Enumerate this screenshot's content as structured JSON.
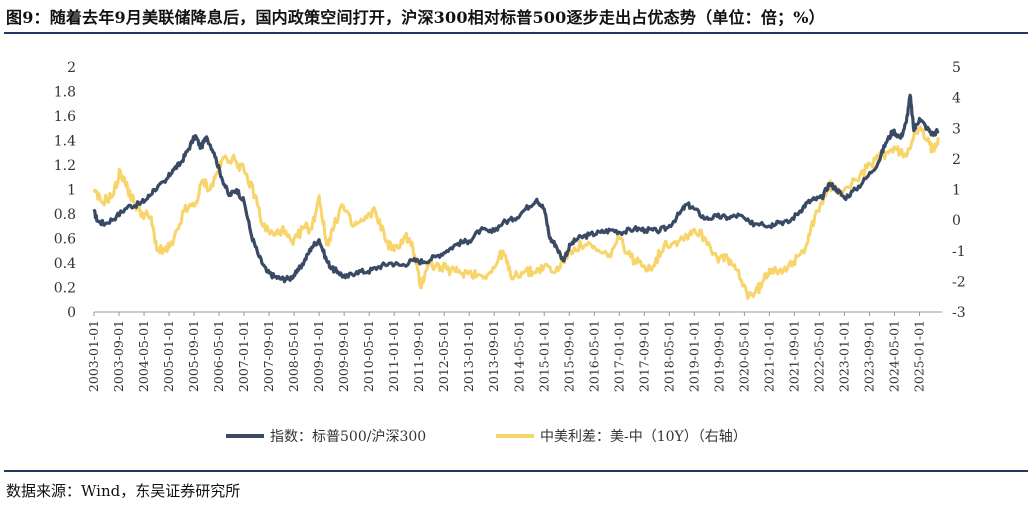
{
  "title": "图9：随着去年9月美联储降息后，国内政策空间打开，沪深300相对标普500逐步走出占优态势（单位：倍；%）",
  "source": "数据来源：Wind，东吴证券研究所",
  "colors": {
    "series1": "#3a4a64",
    "series2": "#f7d56a",
    "rule": "#1f3864"
  },
  "chart_data": {
    "type": "line",
    "title": "随着去年9月美联储降息后，国内政策空间打开，沪深300相对标普500逐步走出占优态势（单位：倍；%）",
    "xlabel": "",
    "ylabel_left": "倍",
    "ylabel_right": "%",
    "x_ticks": [
      "2003-01-01",
      "2003-09-01",
      "2004-05-01",
      "2005-01-01",
      "2005-09-01",
      "2006-05-01",
      "2007-01-01",
      "2007-09-01",
      "2008-05-01",
      "2009-01-01",
      "2009-09-01",
      "2010-05-01",
      "2011-01-01",
      "2011-09-01",
      "2012-05-01",
      "2013-01-01",
      "2013-09-01",
      "2014-05-01",
      "2015-01-01",
      "2015-09-01",
      "2016-05-01",
      "2017-01-01",
      "2017-09-01",
      "2018-05-01",
      "2019-01-01",
      "2019-09-01",
      "2020-05-01",
      "2021-01-01",
      "2021-09-01",
      "2022-05-01",
      "2023-01-01",
      "2023-09-01",
      "2024-05-01",
      "2025-01-01"
    ],
    "ylim_left": [
      0,
      2
    ],
    "yticks_left": [
      "0",
      "0.2",
      "0.4",
      "0.6",
      "0.8",
      "1",
      "1.2",
      "1.4",
      "1.6",
      "1.8",
      "2"
    ],
    "ylim_right": [
      -3,
      5
    ],
    "yticks_right": [
      "-3",
      "-2",
      "-1",
      "0",
      "1",
      "2",
      "3",
      "4",
      "5"
    ],
    "legend_position": "bottom",
    "series": [
      {
        "name": "指数：标普500/沪深300",
        "axis": "left",
        "points": [
          [
            2003.0,
            0.82
          ],
          [
            2003.1,
            0.74
          ],
          [
            2003.3,
            0.72
          ],
          [
            2003.6,
            0.78
          ],
          [
            2003.9,
            0.86
          ],
          [
            2004.2,
            0.88
          ],
          [
            2004.4,
            0.92
          ],
          [
            2004.6,
            1.0
          ],
          [
            2004.9,
            1.06
          ],
          [
            2005.1,
            1.16
          ],
          [
            2005.3,
            1.21
          ],
          [
            2005.5,
            1.32
          ],
          [
            2005.7,
            1.44
          ],
          [
            2005.85,
            1.34
          ],
          [
            2006.0,
            1.43
          ],
          [
            2006.2,
            1.3
          ],
          [
            2006.4,
            1.1
          ],
          [
            2006.6,
            0.95
          ],
          [
            2006.8,
            1.0
          ],
          [
            2007.0,
            0.9
          ],
          [
            2007.2,
            0.62
          ],
          [
            2007.4,
            0.45
          ],
          [
            2007.6,
            0.33
          ],
          [
            2007.8,
            0.29
          ],
          [
            2008.0,
            0.27
          ],
          [
            2008.2,
            0.27
          ],
          [
            2008.4,
            0.32
          ],
          [
            2008.6,
            0.41
          ],
          [
            2008.8,
            0.53
          ],
          [
            2009.0,
            0.59
          ],
          [
            2009.2,
            0.42
          ],
          [
            2009.35,
            0.35
          ],
          [
            2009.5,
            0.33
          ],
          [
            2009.7,
            0.28
          ],
          [
            2010.0,
            0.33
          ],
          [
            2010.3,
            0.33
          ],
          [
            2010.6,
            0.37
          ],
          [
            2010.9,
            0.4
          ],
          [
            2011.2,
            0.38
          ],
          [
            2011.5,
            0.42
          ],
          [
            2011.8,
            0.41
          ],
          [
            2012.1,
            0.45
          ],
          [
            2012.4,
            0.5
          ],
          [
            2012.7,
            0.56
          ],
          [
            2013.0,
            0.58
          ],
          [
            2013.3,
            0.67
          ],
          [
            2013.6,
            0.65
          ],
          [
            2013.9,
            0.73
          ],
          [
            2014.2,
            0.76
          ],
          [
            2014.5,
            0.84
          ],
          [
            2014.8,
            0.92
          ],
          [
            2015.0,
            0.84
          ],
          [
            2015.15,
            0.6
          ],
          [
            2015.3,
            0.55
          ],
          [
            2015.5,
            0.42
          ],
          [
            2015.7,
            0.55
          ],
          [
            2015.9,
            0.6
          ],
          [
            2016.2,
            0.63
          ],
          [
            2016.5,
            0.65
          ],
          [
            2016.8,
            0.67
          ],
          [
            2017.1,
            0.65
          ],
          [
            2017.4,
            0.68
          ],
          [
            2017.7,
            0.67
          ],
          [
            2018.0,
            0.66
          ],
          [
            2018.3,
            0.69
          ],
          [
            2018.6,
            0.8
          ],
          [
            2018.8,
            0.88
          ],
          [
            2019.0,
            0.84
          ],
          [
            2019.3,
            0.76
          ],
          [
            2019.6,
            0.78
          ],
          [
            2019.9,
            0.77
          ],
          [
            2020.2,
            0.79
          ],
          [
            2020.5,
            0.72
          ],
          [
            2020.8,
            0.73
          ],
          [
            2021.0,
            0.7
          ],
          [
            2021.2,
            0.74
          ],
          [
            2021.5,
            0.73
          ],
          [
            2021.8,
            0.82
          ],
          [
            2022.0,
            0.89
          ],
          [
            2022.2,
            0.92
          ],
          [
            2022.4,
            0.93
          ],
          [
            2022.6,
            1.05
          ],
          [
            2022.8,
            1.0
          ],
          [
            2023.0,
            0.93
          ],
          [
            2023.3,
            1.0
          ],
          [
            2023.6,
            1.1
          ],
          [
            2023.9,
            1.22
          ],
          [
            2024.1,
            1.38
          ],
          [
            2024.3,
            1.48
          ],
          [
            2024.5,
            1.42
          ],
          [
            2024.65,
            1.55
          ],
          [
            2024.75,
            1.77
          ],
          [
            2024.85,
            1.48
          ],
          [
            2025.0,
            1.58
          ],
          [
            2025.2,
            1.5
          ],
          [
            2025.35,
            1.45
          ],
          [
            2025.5,
            1.48
          ]
        ]
      },
      {
        "name": "中美利差：美-中（10Y）（右轴）",
        "axis": "right",
        "points": [
          [
            2003.0,
            0.9
          ],
          [
            2003.2,
            0.6
          ],
          [
            2003.5,
            0.8
          ],
          [
            2003.7,
            1.6
          ],
          [
            2003.9,
            1.0
          ],
          [
            2004.1,
            0.5
          ],
          [
            2004.3,
            0.2
          ],
          [
            2004.5,
            0.1
          ],
          [
            2004.7,
            -1.0
          ],
          [
            2004.9,
            -1.0
          ],
          [
            2005.1,
            -0.8
          ],
          [
            2005.4,
            0.3
          ],
          [
            2005.7,
            0.5
          ],
          [
            2005.9,
            1.3
          ],
          [
            2006.1,
            1.0
          ],
          [
            2006.3,
            1.6
          ],
          [
            2006.5,
            2.1
          ],
          [
            2006.8,
            1.9
          ],
          [
            2007.0,
            1.6
          ],
          [
            2007.3,
            0.8
          ],
          [
            2007.5,
            -0.2
          ],
          [
            2007.8,
            -0.5
          ],
          [
            2008.0,
            -0.3
          ],
          [
            2008.3,
            -0.8
          ],
          [
            2008.6,
            -0.2
          ],
          [
            2008.8,
            -0.3
          ],
          [
            2009.0,
            0.8
          ],
          [
            2009.2,
            -0.8
          ],
          [
            2009.4,
            -0.2
          ],
          [
            2009.6,
            0.5
          ],
          [
            2009.9,
            -0.2
          ],
          [
            2010.2,
            0.0
          ],
          [
            2010.5,
            0.3
          ],
          [
            2010.8,
            -0.7
          ],
          [
            2011.0,
            -1.0
          ],
          [
            2011.3,
            -0.5
          ],
          [
            2011.5,
            -0.9
          ],
          [
            2011.7,
            -2.2
          ],
          [
            2011.9,
            -1.4
          ],
          [
            2012.1,
            -1.5
          ],
          [
            2012.4,
            -1.6
          ],
          [
            2012.7,
            -1.7
          ],
          [
            2013.0,
            -1.7
          ],
          [
            2013.3,
            -1.8
          ],
          [
            2013.6,
            -1.7
          ],
          [
            2013.9,
            -1.0
          ],
          [
            2014.1,
            -1.8
          ],
          [
            2014.4,
            -1.7
          ],
          [
            2014.7,
            -1.7
          ],
          [
            2015.0,
            -1.5
          ],
          [
            2015.3,
            -1.7
          ],
          [
            2015.5,
            -1.3
          ],
          [
            2015.8,
            -0.9
          ],
          [
            2016.1,
            -0.8
          ],
          [
            2016.4,
            -1.0
          ],
          [
            2016.7,
            -1.2
          ],
          [
            2017.0,
            -0.6
          ],
          [
            2017.3,
            -1.2
          ],
          [
            2017.6,
            -1.5
          ],
          [
            2017.9,
            -1.5
          ],
          [
            2018.2,
            -0.8
          ],
          [
            2018.5,
            -0.7
          ],
          [
            2018.8,
            -0.5
          ],
          [
            2019.0,
            -0.3
          ],
          [
            2019.3,
            -0.6
          ],
          [
            2019.6,
            -1.2
          ],
          [
            2019.9,
            -1.3
          ],
          [
            2020.1,
            -1.6
          ],
          [
            2020.4,
            -2.4
          ],
          [
            2020.6,
            -2.4
          ],
          [
            2020.8,
            -2.1
          ],
          [
            2021.0,
            -1.6
          ],
          [
            2021.3,
            -1.6
          ],
          [
            2021.6,
            -1.5
          ],
          [
            2021.9,
            -1.0
          ],
          [
            2022.1,
            -0.3
          ],
          [
            2022.4,
            0.6
          ],
          [
            2022.6,
            1.2
          ],
          [
            2022.8,
            0.9
          ],
          [
            2023.0,
            1.0
          ],
          [
            2023.3,
            1.3
          ],
          [
            2023.6,
            1.7
          ],
          [
            2023.9,
            2.0
          ],
          [
            2024.1,
            2.2
          ],
          [
            2024.4,
            2.3
          ],
          [
            2024.6,
            2.1
          ],
          [
            2024.8,
            2.6
          ],
          [
            2025.0,
            3.0
          ],
          [
            2025.2,
            2.6
          ],
          [
            2025.35,
            2.3
          ],
          [
            2025.5,
            2.7
          ]
        ]
      }
    ]
  }
}
